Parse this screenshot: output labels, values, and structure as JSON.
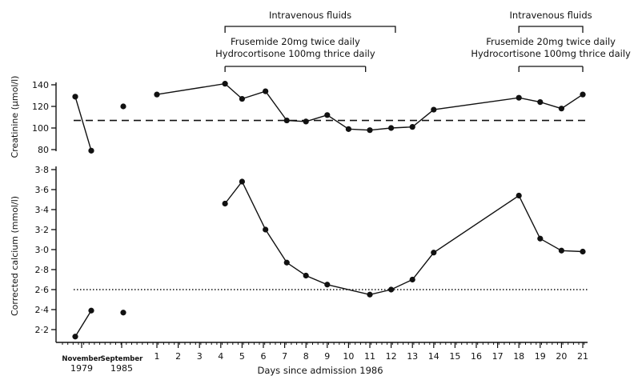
{
  "chart_data": [
    {
      "type": "line",
      "ylabel": "Creatinine (μmol/l)",
      "ylim": [
        80,
        140
      ],
      "yticks": [
        "80",
        "100",
        "120",
        "140"
      ],
      "reference_line": {
        "y": 107,
        "style": "dashed"
      },
      "history_points": [
        {
          "period": "November 1979",
          "values": [
            129,
            79
          ],
          "connected": true
        },
        {
          "period": "September 1985",
          "values": [
            120
          ],
          "connected": false
        }
      ],
      "series": [
        {
          "x": [
            1,
            4.2,
            5,
            6.1,
            7.1,
            8,
            9,
            10,
            11,
            12,
            13,
            14,
            18,
            19,
            20,
            21
          ],
          "y": [
            131,
            141,
            127,
            134,
            107,
            106,
            112,
            99,
            98,
            100,
            101,
            117,
            128,
            124,
            118,
            131
          ]
        }
      ]
    },
    {
      "type": "line",
      "ylabel": "Corrected calcium (mmol/l)",
      "ylim": [
        2.1,
        3.8
      ],
      "yticks": [
        "2·2",
        "2·4",
        "2·6",
        "2·8",
        "3·0",
        "3·2",
        "3·4",
        "3·6",
        "3·8"
      ],
      "reference_line": {
        "y": 2.6,
        "style": "dotted"
      },
      "history_points": [
        {
          "period": "November 1979",
          "values": [
            2.13,
            2.39
          ],
          "connected": true
        },
        {
          "period": "September 1985",
          "values": [
            2.37
          ],
          "connected": false
        }
      ],
      "series": [
        {
          "x": [
            4.2,
            5,
            6.1,
            7.1,
            8,
            9,
            11,
            12,
            13,
            14,
            18,
            19,
            20,
            21
          ],
          "y": [
            3.46,
            3.68,
            3.2,
            2.87,
            2.74,
            2.65,
            2.55,
            2.6,
            2.7,
            2.97,
            3.54,
            3.11,
            2.99,
            2.98
          ]
        }
      ]
    }
  ],
  "x_axis": {
    "label": "Days since admission 1986",
    "ticks": [
      "1",
      "2",
      "3",
      "4",
      "5",
      "6",
      "7",
      "8",
      "9",
      "10",
      "11",
      "12",
      "13",
      "14",
      "15",
      "16",
      "17",
      "18",
      "19",
      "20",
      "21"
    ],
    "history_labels": [
      {
        "line1": "November",
        "line2": "1979"
      },
      {
        "line1": "September",
        "line2": "1985"
      }
    ]
  },
  "annotations": [
    {
      "text": "Intravenous fluids",
      "x_start": 4.2,
      "x_end": 12.2
    },
    {
      "text": "Frusemide 20mg twice daily",
      "line2": "Hydrocortisone 100mg thrice daily",
      "x_start": 4.2,
      "x_end": 10.8
    },
    {
      "text": "Intravenous fluids",
      "x_start": 18,
      "x_end": 21
    },
    {
      "text": "Frusemide 20mg twice daily",
      "line2": "Hydrocortisone 100mg thrice daily",
      "x_start": 18,
      "x_end": 21
    }
  ]
}
